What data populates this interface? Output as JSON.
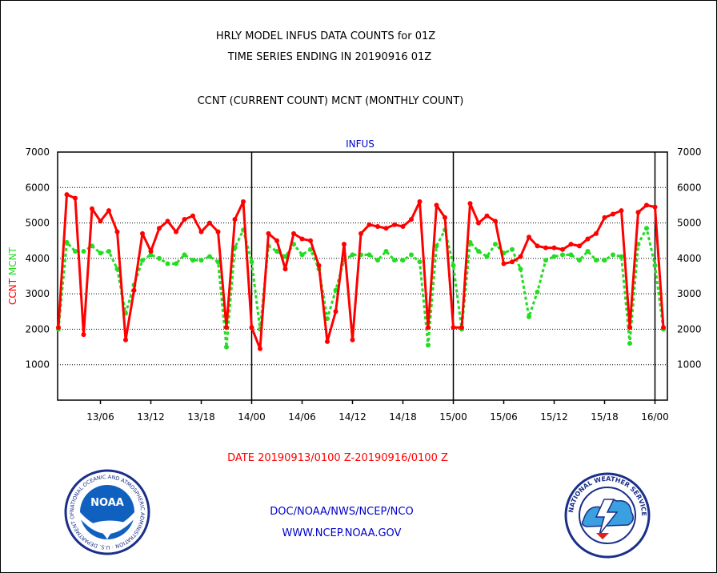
{
  "header": {
    "title_line1": "HRLY MODEL INFUS DATA COUNTS for 01Z",
    "title_line2": "TIME SERIES ENDING IN 20190916 01Z",
    "subtitle": "CCNT (CURRENT COUNT) MCNT (MONTHLY COUNT)"
  },
  "footer": {
    "date_range": "DATE 20190913/0100 Z-20190916/0100 Z",
    "org_line": "DOC/NOAA/NWS/NCEP/NCO",
    "url_line": "WWW.NCEP.NOAA.GOV"
  },
  "logos": {
    "noaa_center": "NOAA",
    "noaa_ring": "NATIONAL OCEANIC AND ATMOSPHERIC ADMINISTRATION · U.S. DEPARTMENT OF COMMERCE",
    "nws_ring": "NATIONAL WEATHER SERVICE"
  },
  "colors": {
    "ccnt": "#ff0000",
    "mcnt": "#22dd22",
    "title_blue": "#0000cc",
    "footer_red": "#ff0000"
  },
  "chart_data": {
    "type": "line",
    "title": "INFUS",
    "ylabel_left": [
      "CCNT",
      "MCNT"
    ],
    "ylim": [
      0,
      7000
    ],
    "xlim_hours": [
      0,
      72
    ],
    "yticks": [
      1000,
      2000,
      3000,
      4000,
      5000,
      6000,
      7000
    ],
    "grid": true,
    "day_separators": [
      {
        "label": "14/00",
        "hour": 23
      },
      {
        "label": "15/00",
        "hour": 47
      },
      {
        "label": "16/00",
        "hour": 71
      }
    ],
    "xtick_labels": [
      {
        "label": "13/06",
        "hour": 5
      },
      {
        "label": "13/12",
        "hour": 11
      },
      {
        "label": "13/18",
        "hour": 17
      },
      {
        "label": "14/00",
        "hour": 23
      },
      {
        "label": "14/06",
        "hour": 29
      },
      {
        "label": "14/12",
        "hour": 35
      },
      {
        "label": "14/18",
        "hour": 41
      },
      {
        "label": "15/00",
        "hour": 47
      },
      {
        "label": "15/06",
        "hour": 53
      },
      {
        "label": "15/12",
        "hour": 59
      },
      {
        "label": "15/18",
        "hour": 65
      },
      {
        "label": "16/00",
        "hour": 71
      }
    ],
    "series": [
      {
        "name": "CCNT",
        "values": [
          2050,
          5800,
          5700,
          1850,
          5400,
          5050,
          5350,
          4750,
          1700,
          3100,
          4700,
          4200,
          4850,
          5050,
          4750,
          5100,
          5200,
          4750,
          5000,
          4750,
          2050,
          5100,
          5600,
          2050,
          1450,
          4700,
          4500,
          3700,
          4700,
          4550,
          4500,
          3800,
          1650,
          2500,
          4400,
          1700,
          4700,
          4950,
          4900,
          4850,
          4950,
          4900,
          5100,
          5600,
          2050,
          5500,
          5150,
          2050,
          2050,
          5550,
          5000,
          5200,
          5050,
          3850,
          3900,
          4050,
          4600,
          4350,
          4300,
          4300,
          4250,
          4400,
          4350,
          4550,
          4700,
          5150,
          5250,
          5350,
          2050,
          5300,
          5500,
          5450,
          2050
        ]
      },
      {
        "name": "MCNT",
        "values": [
          2000,
          4450,
          4200,
          4200,
          4350,
          4150,
          4200,
          3700,
          2450,
          3250,
          3950,
          4100,
          4000,
          3850,
          3850,
          4100,
          3950,
          3950,
          4050,
          3900,
          1500,
          4300,
          4800,
          3900,
          2000,
          4350,
          4200,
          4050,
          4400,
          4100,
          4250,
          3700,
          2300,
          3100,
          3950,
          4100,
          4100,
          4100,
          3950,
          4200,
          3950,
          3950,
          4100,
          3900,
          1550,
          4350,
          4800,
          3800,
          2000,
          4450,
          4200,
          4050,
          4400,
          4150,
          4250,
          3700,
          2350,
          3050,
          3950,
          4050,
          4100,
          4100,
          3950,
          4200,
          3950,
          3950,
          4100,
          4050,
          1600,
          4400,
          4850,
          3800,
          2000
        ]
      }
    ]
  }
}
